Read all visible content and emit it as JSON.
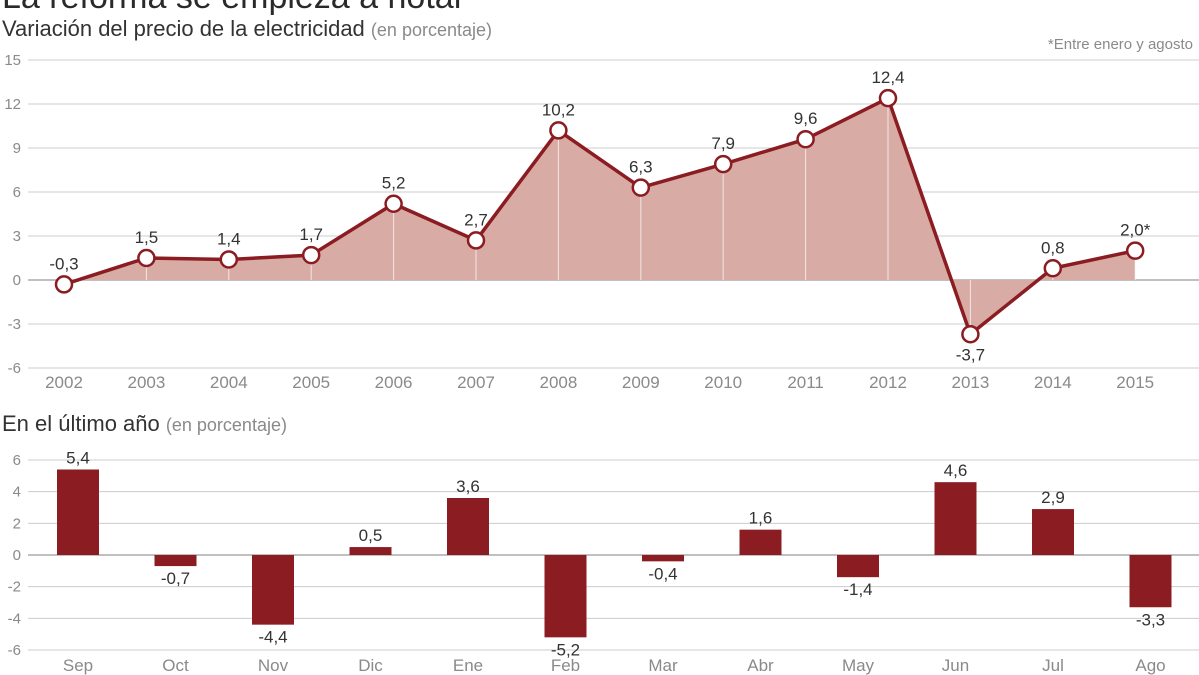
{
  "header": {
    "title": "La reforma se empieza a notar",
    "subtitle": "Variación del precio de la electricidad",
    "subtitle_unit": "(en porcentaje)",
    "note": "*Entre enero y agosto"
  },
  "section2": {
    "title": "En el último año",
    "unit": "(en porcentaje)"
  },
  "colors": {
    "accent": "#8b1c22",
    "area": "#d8aca5",
    "grid": "#cccccc"
  },
  "chart_data": [
    {
      "type": "area",
      "title": "Variación del precio de la electricidad",
      "categories": [
        "2002",
        "2003",
        "2004",
        "2005",
        "2006",
        "2007",
        "2008",
        "2009",
        "2010",
        "2011",
        "2012",
        "2013",
        "2014",
        "2015"
      ],
      "values": [
        -0.3,
        1.5,
        1.4,
        1.7,
        5.2,
        2.7,
        10.2,
        6.3,
        7.9,
        9.6,
        12.4,
        -3.7,
        0.8,
        2.0
      ],
      "data_labels": [
        "-0,3",
        "1,5",
        "1,4",
        "1,7",
        "5,2",
        "2,7",
        "10,2",
        "6,3",
        "7,9",
        "9,6",
        "12,4",
        "-3,7",
        "0,8",
        "2,0*"
      ],
      "yticks": [
        "15",
        "12",
        "9",
        "6",
        "3",
        "0",
        "-3",
        "-6"
      ],
      "ytick_values": [
        15,
        12,
        9,
        6,
        3,
        0,
        -3,
        -6
      ],
      "ylim": [
        -6,
        15
      ],
      "grid": true
    },
    {
      "type": "bar",
      "title": "En el último año",
      "categories": [
        "Sep",
        "Oct",
        "Nov",
        "Dic",
        "Ene",
        "Feb",
        "Mar",
        "Abr",
        "May",
        "Jun",
        "Jul",
        "Ago"
      ],
      "values": [
        5.4,
        -0.7,
        -4.4,
        0.5,
        3.6,
        -5.2,
        -0.4,
        1.6,
        -1.4,
        4.6,
        2.9,
        -3.3
      ],
      "data_labels": [
        "5,4",
        "-0,7",
        "-4,4",
        "0,5",
        "3,6",
        "-5,2",
        "-0,4",
        "1,6",
        "-1,4",
        "4,6",
        "2,9",
        "-3,3"
      ],
      "yticks": [
        "6",
        "4",
        "2",
        "0",
        "-2",
        "-4",
        "-6"
      ],
      "ytick_values": [
        6,
        4,
        2,
        0,
        -2,
        -4,
        -6
      ],
      "ylim": [
        -6,
        6
      ],
      "grid": true
    }
  ]
}
